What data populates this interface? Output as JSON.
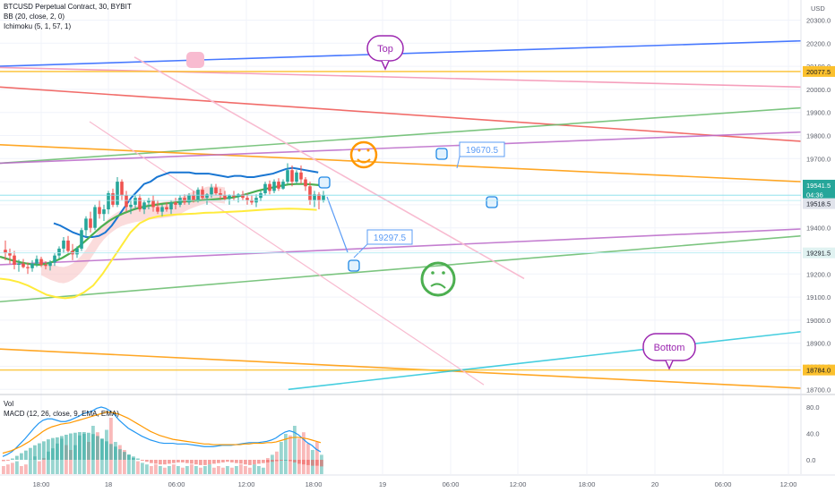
{
  "header": {
    "symbol_line": "BTCUSD Perpetual Contract, 30, BYBIT",
    "bb_line": "BB (20, close, 2, 0)",
    "ichimoku_line": "Ichimoku (5, 1, 57, 1)",
    "currency": "USD"
  },
  "lower_pane": {
    "vol_label": "Vol",
    "macd_label": "MACD (12, 26, close, 9, EMA, EMA)"
  },
  "colors": {
    "background": "#ffffff",
    "up": "#26a69a",
    "down": "#ef5350",
    "bb_basis": "#4caf50",
    "bb_band": "#1976d2",
    "ichimoku_cloud": "#f8c5c5",
    "ichimoku_lagging": "#ffeb3b",
    "macd_line": "#2196f3",
    "signal_line": "#ff9800",
    "grid": "#f0f3fa",
    "axis_text": "#5a5e69"
  },
  "annotations": {
    "top_label": "Top",
    "bottom_label": "Bottom",
    "callout_high": "19670.5",
    "callout_low": "19297.5"
  },
  "chart_data": [
    {
      "type": "candlestick",
      "title": "BTCUSD Perpetual Contract, 30, BYBIT",
      "x_tick_labels": [
        "18:00",
        "18",
        "06:00",
        "12:00",
        "18:00",
        "19",
        "06:00",
        "12:00",
        "18:00",
        "20",
        "06:00",
        "12:00"
      ],
      "y_tick_labels": [
        "20300.0",
        "20200.0",
        "20100.0",
        "20000.0",
        "19900.0",
        "19800.0",
        "19700.0",
        "19600.0",
        "19500.0",
        "19400.0",
        "19300.0",
        "19200.0",
        "19100.0",
        "19000.0",
        "18900.0",
        "18800.0",
        "18700.0"
      ],
      "ylim": [
        18700,
        20300
      ],
      "grid": true,
      "price_badges": [
        {
          "value": "20077.5",
          "color": "#fbc02d"
        },
        {
          "value": "19541.5",
          "color": "#26a69a"
        },
        {
          "value": "04:36",
          "color": "#26a69a"
        },
        {
          "value": "19518.5",
          "color": "#e0e3eb"
        },
        {
          "value": "19291.5",
          "color": "#e0f2f1"
        },
        {
          "value": "18784.0",
          "color": "#fbc02d"
        }
      ],
      "candles_ohlc": [
        [
          19305,
          19345,
          19260,
          19290
        ],
        [
          19290,
          19310,
          19245,
          19280
        ],
        [
          19280,
          19300,
          19220,
          19240
        ],
        [
          19240,
          19262,
          19210,
          19245
        ],
        [
          19245,
          19265,
          19225,
          19230
        ],
        [
          19230,
          19250,
          19200,
          19225
        ],
        [
          19225,
          19260,
          19210,
          19245
        ],
        [
          19245,
          19280,
          19230,
          19265
        ],
        [
          19265,
          19275,
          19230,
          19240
        ],
        [
          19240,
          19255,
          19220,
          19235
        ],
        [
          19235,
          19260,
          19215,
          19250
        ],
        [
          19250,
          19290,
          19235,
          19280
        ],
        [
          19280,
          19320,
          19265,
          19310
        ],
        [
          19310,
          19360,
          19290,
          19345
        ],
        [
          19345,
          19365,
          19290,
          19300
        ],
        [
          19300,
          19330,
          19260,
          19285
        ],
        [
          19285,
          19320,
          19270,
          19310
        ],
        [
          19310,
          19400,
          19300,
          19390
        ],
        [
          19390,
          19450,
          19360,
          19440
        ],
        [
          19440,
          19470,
          19380,
          19400
        ],
        [
          19400,
          19500,
          19390,
          19490
        ],
        [
          19490,
          19520,
          19440,
          19460
        ],
        [
          19460,
          19500,
          19430,
          19480
        ],
        [
          19480,
          19560,
          19460,
          19550
        ],
        [
          19550,
          19570,
          19490,
          19500
        ],
        [
          19500,
          19620,
          19490,
          19600
        ],
        [
          19600,
          19610,
          19520,
          19540
        ],
        [
          19540,
          19560,
          19470,
          19490
        ],
        [
          19490,
          19520,
          19460,
          19500
        ],
        [
          19500,
          19540,
          19480,
          19530
        ],
        [
          19530,
          19545,
          19470,
          19480
        ],
        [
          19480,
          19520,
          19460,
          19510
        ],
        [
          19510,
          19530,
          19480,
          19520
        ],
        [
          19520,
          19540,
          19470,
          19490
        ],
        [
          19490,
          19520,
          19460,
          19470
        ],
        [
          19470,
          19500,
          19450,
          19490
        ],
        [
          19490,
          19510,
          19470,
          19480
        ],
        [
          19480,
          19520,
          19460,
          19510
        ],
        [
          19510,
          19530,
          19480,
          19500
        ],
        [
          19500,
          19540,
          19490,
          19530
        ],
        [
          19530,
          19545,
          19500,
          19510
        ],
        [
          19510,
          19550,
          19500,
          19540
        ],
        [
          19540,
          19560,
          19510,
          19520
        ],
        [
          19520,
          19575,
          19510,
          19565
        ],
        [
          19565,
          19580,
          19520,
          19530
        ],
        [
          19530,
          19550,
          19500,
          19545
        ],
        [
          19545,
          19590,
          19530,
          19575
        ],
        [
          19575,
          19590,
          19540,
          19550
        ],
        [
          19550,
          19570,
          19520,
          19540
        ],
        [
          19540,
          19560,
          19520,
          19525
        ],
        [
          19525,
          19545,
          19500,
          19540
        ],
        [
          19540,
          19560,
          19520,
          19535
        ],
        [
          19535,
          19550,
          19510,
          19545
        ],
        [
          19545,
          19560,
          19520,
          19530
        ],
        [
          19530,
          19550,
          19500,
          19520
        ],
        [
          19520,
          19540,
          19500,
          19510
        ],
        [
          19510,
          19545,
          19490,
          19530
        ],
        [
          19530,
          19560,
          19515,
          19550
        ],
        [
          19550,
          19600,
          19540,
          19590
        ],
        [
          19590,
          19605,
          19545,
          19560
        ],
        [
          19560,
          19610,
          19550,
          19600
        ],
        [
          19600,
          19615,
          19560,
          19570
        ],
        [
          19570,
          19610,
          19565,
          19600
        ],
        [
          19600,
          19680,
          19590,
          19650
        ],
        [
          19650,
          19670,
          19580,
          19600
        ],
        [
          19600,
          19650,
          19590,
          19640
        ],
        [
          19640,
          19670,
          19590,
          19610
        ],
        [
          19610,
          19620,
          19560,
          19580
        ],
        [
          19580,
          19600,
          19500,
          19520
        ],
        [
          19520,
          19560,
          19490,
          19545
        ],
        [
          19545,
          19555,
          19480,
          19520
        ],
        [
          19520,
          19560,
          19510,
          19541.5
        ]
      ],
      "bb_upper": [
        19420,
        19410,
        19395,
        19380,
        19370,
        19360,
        19360,
        19365,
        19380,
        19410,
        19450,
        19490,
        19530,
        19560,
        19590,
        19600,
        19620,
        19630,
        19640,
        19640,
        19640,
        19640,
        19635,
        19635,
        19635,
        19630,
        19625,
        19620,
        19625,
        19625,
        19620,
        19620,
        19625,
        19630,
        19635,
        19645,
        19655,
        19660,
        19655,
        19650,
        19645,
        19640
      ],
      "bb_basis": [
        19275,
        19265,
        19255,
        19248,
        19242,
        19240,
        19245,
        19255,
        19270,
        19290,
        19315,
        19345,
        19375,
        19405,
        19430,
        19450,
        19465,
        19478,
        19488,
        19495,
        19500,
        19505,
        19508,
        19512,
        19515,
        19518,
        19520,
        19522,
        19525,
        19528,
        19532,
        19540,
        19550,
        19560,
        19568,
        19575,
        19582,
        19588,
        19590,
        19590,
        19588,
        19585
      ],
      "lagging_span": [
        19180,
        19175,
        19165,
        19150,
        19130,
        19110,
        19100,
        19095,
        19100,
        19120,
        19150,
        19200,
        19260,
        19320,
        19380,
        19420,
        19440,
        19450,
        19455,
        19458,
        19460,
        19462,
        19465,
        19466,
        19468,
        19470,
        19472,
        19475,
        19478,
        19480,
        19482,
        19483,
        19482,
        19480,
        19478
      ],
      "trendlines": [
        {
          "color": "#2962ff",
          "from": [
            0,
            20100
          ],
          "to": [
            1,
            20210
          ]
        },
        {
          "color": "#f48fb1",
          "from": [
            0,
            20095
          ],
          "to": [
            1,
            20010
          ]
        },
        {
          "color": "#fbc02d",
          "from": [
            0,
            20077.5
          ],
          "to": [
            1,
            20077.5
          ]
        },
        {
          "color": "#ef5350",
          "from": [
            0,
            20010
          ],
          "to": [
            1,
            19775
          ]
        },
        {
          "color": "#66bb6a",
          "from": [
            0,
            19680
          ],
          "to": [
            1,
            19920
          ]
        },
        {
          "color": "#ff9800",
          "from": [
            0,
            19760
          ],
          "to": [
            1,
            19600
          ]
        },
        {
          "color": "#ba68c8",
          "from": [
            0,
            19680
          ],
          "to": [
            1,
            19815
          ]
        },
        {
          "color": "#ba68c8",
          "from": [
            0,
            19240
          ],
          "to": [
            1,
            19395
          ]
        },
        {
          "color": "#66bb6a",
          "from": [
            0,
            19080
          ],
          "to": [
            1,
            19365
          ]
        },
        {
          "color": "#ff9800",
          "from": [
            0,
            18875
          ],
          "to": [
            1,
            18705
          ]
        },
        {
          "color": "#fbc02d",
          "from": [
            0,
            18784
          ],
          "to": [
            1,
            18784
          ]
        },
        {
          "color": "#26c6da",
          "from": [
            0.36,
            18700
          ],
          "to": [
            1,
            18950
          ]
        }
      ]
    },
    {
      "type": "bar",
      "title": "MACD (12, 26, close, 9, EMA, EMA)",
      "y_tick_labels": [
        "80.0",
        "40.0",
        "0.0"
      ],
      "ylim": [
        -20,
        90
      ],
      "histogram": [
        -2,
        -1,
        2,
        6,
        10,
        14,
        18,
        22,
        25,
        28,
        31,
        33,
        34,
        36,
        38,
        40,
        41,
        42,
        42,
        41,
        39,
        36,
        32,
        28,
        24,
        20,
        16,
        12,
        8,
        5,
        2,
        -1,
        -3,
        -5,
        -6,
        -7,
        -7,
        -6,
        -5,
        -4,
        -4,
        -5,
        -6,
        -7,
        -8,
        -8,
        -7,
        -6,
        -5,
        -4,
        -3,
        -4,
        -5,
        -6,
        -7,
        -8,
        -7,
        -6,
        -5,
        -4,
        -3,
        -2,
        -1,
        0,
        -2,
        -4,
        -6,
        -7,
        -8,
        -9,
        -9,
        -10
      ],
      "volume": [
        10,
        12,
        14,
        16,
        10,
        12,
        18,
        22,
        16,
        20,
        28,
        32,
        38,
        44,
        36,
        30,
        36,
        48,
        50,
        40,
        60,
        52,
        44,
        55,
        70,
        40,
        36,
        30,
        24,
        20,
        16,
        14,
        12,
        10,
        12,
        10,
        8,
        10,
        12,
        10,
        8,
        10,
        12,
        10,
        8,
        10,
        12,
        8,
        10,
        8,
        10,
        8,
        10,
        12,
        10,
        8,
        12,
        10,
        8,
        20,
        24,
        28,
        40,
        50,
        48,
        60,
        44,
        52,
        38,
        30,
        40,
        24
      ],
      "macd_line": [
        5,
        8,
        12,
        18,
        25,
        32,
        40,
        48,
        55,
        60,
        62,
        62,
        60,
        58,
        58,
        60,
        63,
        66,
        70,
        72,
        74,
        78,
        80,
        78,
        74,
        68,
        60,
        54,
        48,
        44,
        40,
        36,
        33,
        30,
        28,
        26,
        25,
        25,
        25,
        24,
        24,
        24,
        23,
        22,
        21,
        20,
        20,
        20,
        21,
        22,
        22,
        22,
        23,
        24,
        25,
        26,
        26,
        26,
        27,
        28,
        30,
        33,
        38,
        42,
        44,
        42,
        38,
        32,
        26,
        22,
        16,
        12
      ],
      "signal_line": [
        10,
        12,
        14,
        17,
        20,
        24,
        28,
        33,
        38,
        43,
        47,
        50,
        52,
        54,
        55,
        56,
        58,
        60,
        62,
        64,
        66,
        68,
        70,
        72,
        72,
        71,
        69,
        66,
        63,
        59,
        55,
        51,
        47,
        43,
        40,
        37,
        35,
        33,
        31,
        30,
        29,
        28,
        27,
        26,
        25,
        24,
        24,
        23,
        23,
        23,
        23,
        23,
        23,
        23,
        24,
        24,
        25,
        25,
        25,
        26,
        26,
        27,
        29,
        31,
        33,
        34,
        34,
        33,
        32,
        30,
        28,
        26
      ]
    }
  ]
}
